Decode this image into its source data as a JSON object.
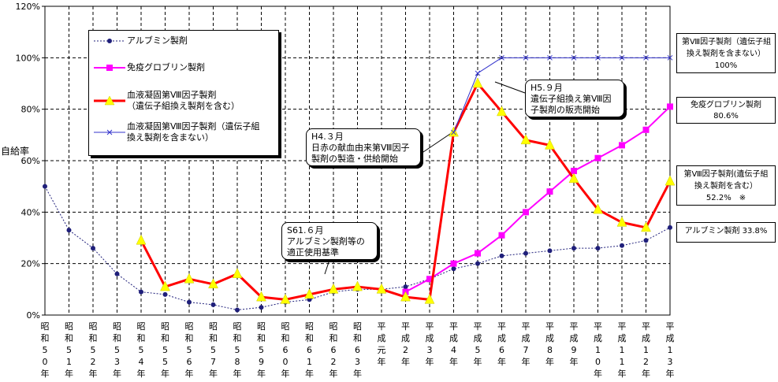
{
  "chart_data": {
    "type": "line",
    "ylabel": "自給率",
    "ylim": [
      0,
      120
    ],
    "yticks": [
      "0%",
      "20%",
      "40%",
      "60%",
      "80%",
      "100%",
      "120%"
    ],
    "categories": [
      "昭和50年",
      "昭和51年",
      "昭和52年",
      "昭和53年",
      "昭和54年",
      "昭和55年",
      "昭和56年",
      "昭和57年",
      "昭和58年",
      "昭和59年",
      "昭和60年",
      "昭和61年",
      "昭和62年",
      "昭和63年",
      "平成元年",
      "平成2年",
      "平成3年",
      "平成4年",
      "平成5年",
      "平成6年",
      "平成7年",
      "平成8年",
      "平成9年",
      "平成10年",
      "平成11年",
      "平成12年",
      "平成13年"
    ],
    "series": [
      {
        "name": "アルブミン製剤",
        "color": "#1f1f7a",
        "values": [
          50,
          33,
          26,
          16,
          9,
          8,
          5,
          4,
          2,
          3,
          5,
          6,
          9,
          10,
          10,
          11,
          14,
          18,
          20,
          23,
          24,
          25,
          26,
          26,
          27,
          29,
          34
        ]
      },
      {
        "name": "免疫グロブリン製剤",
        "color": "#ff00ff",
        "values": [
          null,
          null,
          null,
          null,
          null,
          null,
          null,
          null,
          null,
          null,
          null,
          null,
          null,
          null,
          null,
          9,
          14,
          20,
          24,
          31,
          40,
          48,
          56,
          61,
          66,
          72,
          81
        ]
      },
      {
        "name": "血液凝固第Ⅷ因子製剤\n（遺伝子組換え製剤を含む）",
        "color": "#ff0000",
        "values": [
          null,
          null,
          null,
          null,
          29,
          11,
          14,
          12,
          16,
          7,
          6,
          8,
          10,
          11,
          10,
          7,
          6,
          71,
          90,
          79,
          68,
          66,
          53,
          41,
          36,
          34,
          52
        ]
      },
      {
        "name": "血液凝固第Ⅷ因子製剤（遺伝子組\n換え製剤を含まない）",
        "color": "#3333cc",
        "values": [
          null,
          null,
          null,
          null,
          null,
          null,
          null,
          null,
          null,
          null,
          null,
          null,
          null,
          null,
          null,
          null,
          null,
          71,
          94,
          100,
          100,
          100,
          100,
          100,
          100,
          100,
          100
        ]
      }
    ],
    "annotations": {
      "s61": "S61.６月\nアルブミン製剤等の\n適正使用基準",
      "h4": "H4.３月\n日赤の献血由来第Ⅷ因子\n製剤の製造・供給開始",
      "h5": "H5.９月\n遺伝子組換え第Ⅷ因\n子製剤の販売開始"
    },
    "side_labels": {
      "f8_excl": "第Ⅷ因子製剤（遺伝子組\n換え製剤を含まない）\n100%",
      "igg": "免疫グロブリン製剤\n80.6%",
      "f8_incl": "第Ⅷ因子製剤(遺伝子組\n換え製剤を含む）\n52.2%　※",
      "alb": "アルブミン製剤 33.8%"
    },
    "grid": true,
    "legend_position": "top-left"
  }
}
